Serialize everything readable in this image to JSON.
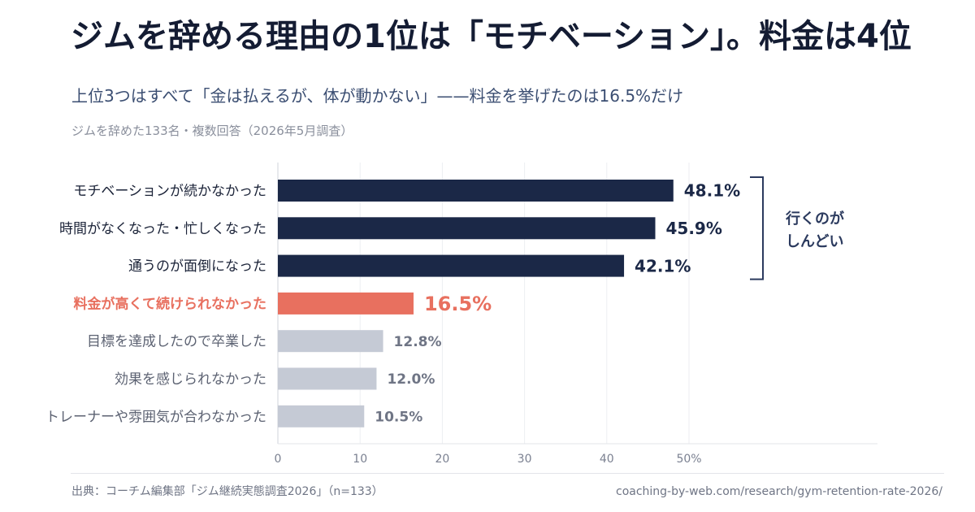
{
  "header": {
    "title": "ジムを辞める理由の1位は「モチベーション」。料金は4位",
    "subtitle": "上位3つはすべて「金は払えるが、体が動かない」——料金を挙げたのは16.5%だけ",
    "note": "ジムを辞めた133名・複数回答（2026年5月調査）"
  },
  "footer": {
    "source": "出典：コーチム編集部「ジム継続実態調査2026」（n=133）",
    "url": "coaching-by-web.com/research/gym-retention-rate-2026/"
  },
  "colors": {
    "primary": "#1b2847",
    "highlight": "#e8705f",
    "muted": "#c5cad5",
    "bracket": "#2b3a5e"
  },
  "chart_data": {
    "type": "bar",
    "orientation": "horizontal",
    "categories": [
      "モチベーションが続かなかった",
      "時間がなくなった・忙しくなった",
      "通うのが面倒になった",
      "料金が高くて続けられなかった",
      "目標を達成したので卒業した",
      "効果を感じられなかった",
      "トレーナーや雰囲気が合わなかった"
    ],
    "values": [
      48.1,
      45.9,
      42.1,
      16.5,
      12.8,
      12.0,
      10.5
    ],
    "value_labels": [
      "48.1%",
      "45.9%",
      "42.1%",
      "16.5%",
      "12.8%",
      "12.0%",
      "10.5%"
    ],
    "bar_style": [
      "primary",
      "primary",
      "primary",
      "highlight",
      "muted",
      "muted",
      "muted"
    ],
    "xlim": [
      0,
      50
    ],
    "xticks": [
      "0",
      "10",
      "20",
      "30",
      "40",
      "50%"
    ],
    "grid": true,
    "annotation": {
      "line1": "行くのが",
      "line2": "しんどい",
      "covers": [
        0,
        1,
        2
      ]
    }
  }
}
